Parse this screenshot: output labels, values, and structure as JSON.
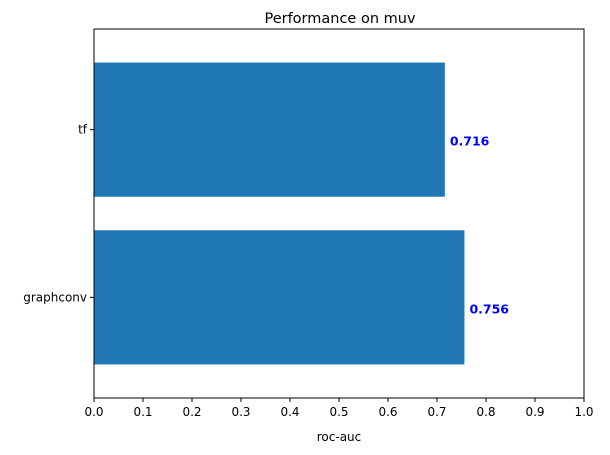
{
  "chart_data": {
    "type": "bar",
    "orientation": "horizontal",
    "title": "Performance on muv",
    "xlabel": "roc-auc",
    "ylabel": "",
    "xlim": [
      0.0,
      1.0
    ],
    "xticks": [
      "0.0",
      "0.1",
      "0.2",
      "0.3",
      "0.4",
      "0.5",
      "0.6",
      "0.7",
      "0.8",
      "0.9",
      "1.0"
    ],
    "categories": [
      "graphconv",
      "tf"
    ],
    "values": [
      0.756,
      0.716
    ],
    "value_labels": [
      "0.756",
      "0.716"
    ],
    "bar_color": "#1f77b4",
    "value_label_color": "#0000ff",
    "grid": false,
    "legend": "none"
  }
}
